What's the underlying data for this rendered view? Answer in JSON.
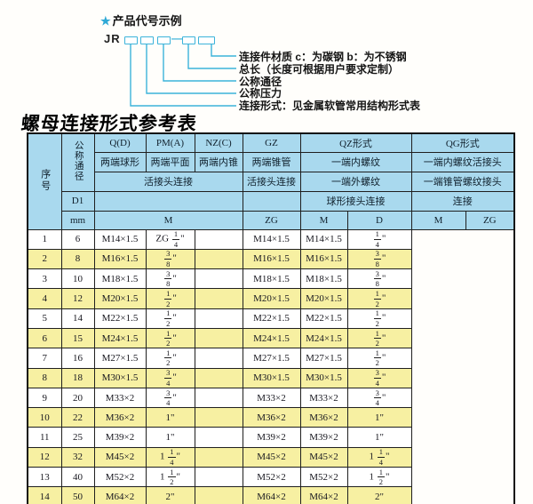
{
  "colors": {
    "header_blue": "#a9d9ee",
    "row_yellow": "#f7f0a2",
    "row_white": "#ffffff",
    "diagram_cyan": "#3cb3da",
    "border": "#1b1b1b"
  },
  "code_diagram": {
    "star": "★",
    "heading": "产品代号示例",
    "prefix": "JR",
    "separator": "—",
    "callouts": [
      "连接件材质  c：为碳钢  b：为不锈钢",
      "总长（长度可根据用户要求定制）",
      "公称通径",
      "公称压力",
      "连接形式：见金属软管常用结构形式表"
    ]
  },
  "table": {
    "title": "螺母连接形式参考表",
    "header": {
      "serial": "序号",
      "nominal_diameter": "公称通径",
      "d1": "D1",
      "mm": "mm",
      "q": "Q(D)",
      "q_sub": "两端球形",
      "pm": "PM(A)",
      "pm_sub": "两端平面",
      "nz": "NZ(C)",
      "nz_sub": "两端内锥",
      "union_conn": "活接头连接",
      "m": "M",
      "gz": "GZ",
      "gz_sub": "两端锥管",
      "gz_conn": "活接头连接",
      "gz_thread": "ZG",
      "qz": "QZ形式",
      "qz_sub1": "一端内螺纹",
      "qz_sub2": "一端外螺纹",
      "qz_conn": "球形接头连接",
      "qz_m": "M",
      "qz_d": "D",
      "qg": "QG形式",
      "qg_sub1": "一端内螺纹活接头",
      "qg_sub2": "一端锥管螺纹接头",
      "qg_conn": "连接",
      "qg_m": "M",
      "qg_zg": "ZG"
    },
    "rows": [
      {
        "no": "1",
        "dn": "6",
        "m": "M14×1.5",
        "gz": "ZG 1/4\"",
        "qz_m": "",
        "qz_d": "M14×1.5",
        "qg_m": "M14×1.5",
        "qg_zg": "1/4\""
      },
      {
        "no": "2",
        "dn": "8",
        "m": "M16×1.5",
        "gz": "3/8\"",
        "qz_m": "",
        "qz_d": "M16×1.5",
        "qg_m": "M16×1.5",
        "qg_zg": "3/8\""
      },
      {
        "no": "3",
        "dn": "10",
        "m": "M18×1.5",
        "gz": "3/8\"",
        "qz_m": "",
        "qz_d": "M18×1.5",
        "qg_m": "M18×1.5",
        "qg_zg": "3/8\""
      },
      {
        "no": "4",
        "dn": "12",
        "m": "M20×1.5",
        "gz": "1/2\"",
        "qz_m": "",
        "qz_d": "M20×1.5",
        "qg_m": "M20×1.5",
        "qg_zg": "1/2\""
      },
      {
        "no": "5",
        "dn": "14",
        "m": "M22×1.5",
        "gz": "1/2\"",
        "qz_m": "",
        "qz_d": "M22×1.5",
        "qg_m": "M22×1.5",
        "qg_zg": "1/2\""
      },
      {
        "no": "6",
        "dn": "15",
        "m": "M24×1.5",
        "gz": "1/2\"",
        "qz_m": "",
        "qz_d": "M24×1.5",
        "qg_m": "M24×1.5",
        "qg_zg": "1/2\""
      },
      {
        "no": "7",
        "dn": "16",
        "m": "M27×1.5",
        "gz": "1/2\"",
        "qz_m": "",
        "qz_d": "M27×1.5",
        "qg_m": "M27×1.5",
        "qg_zg": "1/2\""
      },
      {
        "no": "8",
        "dn": "18",
        "m": "M30×1.5",
        "gz": "3/4\"",
        "qz_m": "",
        "qz_d": "M30×1.5",
        "qg_m": "M30×1.5",
        "qg_zg": "3/4\""
      },
      {
        "no": "9",
        "dn": "20",
        "m": "M33×2",
        "gz": "3/4\"",
        "qz_m": "",
        "qz_d": "M33×2",
        "qg_m": "M33×2",
        "qg_zg": "3/4\""
      },
      {
        "no": "10",
        "dn": "22",
        "m": "M36×2",
        "gz": "1\"",
        "qz_m": "",
        "qz_d": "M36×2",
        "qg_m": "M36×2",
        "qg_zg": "1\""
      },
      {
        "no": "11",
        "dn": "25",
        "m": "M39×2",
        "gz": "1\"",
        "qz_m": "",
        "qz_d": "M39×2",
        "qg_m": "M39×2",
        "qg_zg": "1\""
      },
      {
        "no": "12",
        "dn": "32",
        "m": "M45×2",
        "gz": "1 1/4\"",
        "qz_m": "",
        "qz_d": "M45×2",
        "qg_m": "M45×2",
        "qg_zg": "1 1/4\""
      },
      {
        "no": "13",
        "dn": "40",
        "m": "M52×2",
        "gz": "1 1/2\"",
        "qz_m": "",
        "qz_d": "M52×2",
        "qg_m": "M52×2",
        "qg_zg": "1 1/2\""
      },
      {
        "no": "14",
        "dn": "50",
        "m": "M64×2",
        "gz": "2\"",
        "qz_m": "",
        "qz_d": "M64×2",
        "qg_m": "M64×2",
        "qg_zg": "2\""
      }
    ]
  }
}
